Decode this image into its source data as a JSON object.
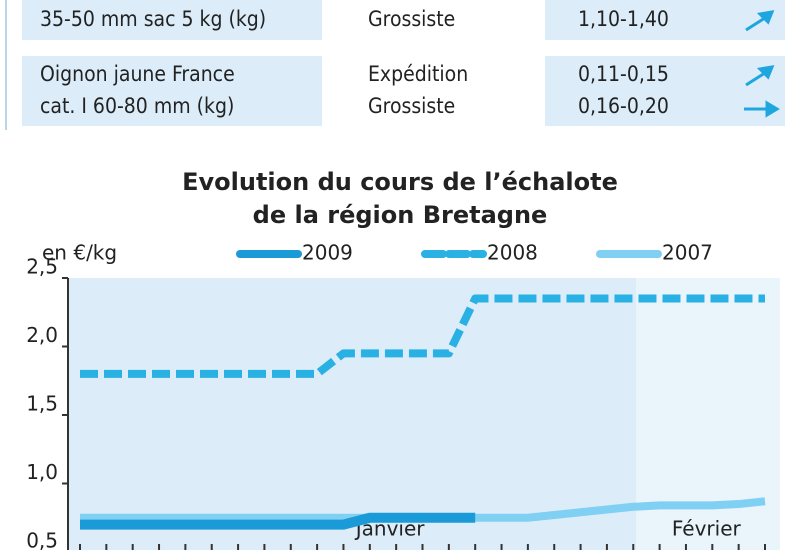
{
  "table": {
    "rows": [
      {
        "label": [
          "35-50 mm sac 5 kg (kg)"
        ],
        "stages": [
          "Grossiste"
        ],
        "prices": [
          "1,10-1,40"
        ]
      },
      {
        "label": [
          "Oignon jaune France",
          "cat. I 60-80 mm (kg)"
        ],
        "stages": [
          "Expédition",
          "Grossiste"
        ],
        "prices": [
          "0,11-0,15",
          "0,16-0,20"
        ]
      }
    ]
  },
  "chart_data": {
    "type": "line",
    "title": [
      "Evolution du cours de l’échalote",
      "de la région Bretagne"
    ],
    "ylabel": "en €/kg",
    "categories": [
      null,
      null,
      null,
      null,
      null,
      null,
      null,
      null,
      null,
      null,
      null,
      null,
      "Janvier",
      null,
      null,
      null,
      null,
      null,
      null,
      null,
      null,
      null,
      null,
      null,
      "Février",
      null,
      null
    ],
    "series": [
      {
        "name": "2009",
        "color": "#1a9ad6",
        "dash": false,
        "values": [
          0.7,
          0.7,
          0.7,
          0.7,
          0.7,
          0.7,
          0.7,
          0.7,
          0.7,
          0.7,
          0.7,
          0.75,
          0.75,
          0.75,
          0.75,
          0.75,
          null,
          null,
          null,
          null,
          null,
          null,
          null,
          null,
          null,
          null,
          null
        ]
      },
      {
        "name": "2008",
        "color": "#29b1e3",
        "dash": true,
        "values": [
          1.8,
          1.8,
          1.8,
          1.8,
          1.8,
          1.8,
          1.8,
          1.8,
          1.8,
          1.8,
          1.95,
          1.95,
          1.95,
          1.95,
          1.95,
          2.35,
          2.35,
          2.35,
          2.35,
          2.35,
          2.35,
          2.35,
          2.35,
          2.35,
          2.35,
          2.35,
          2.35
        ]
      },
      {
        "name": "2007",
        "color": "#7fd0f2",
        "dash": false,
        "values": [
          0.75,
          0.75,
          0.75,
          0.75,
          0.75,
          0.75,
          0.75,
          0.75,
          0.75,
          0.75,
          0.75,
          0.75,
          0.75,
          0.75,
          0.75,
          0.75,
          0.75,
          0.75,
          0.77,
          0.79,
          0.81,
          0.83,
          0.84,
          0.84,
          0.84,
          0.85,
          0.87
        ]
      }
    ],
    "ylim": [
      0.5,
      2.5
    ],
    "yticks": [
      {
        "value": 0.5,
        "label": "0,5"
      },
      {
        "value": 1.0,
        "label": "1,0"
      },
      {
        "value": 1.5,
        "label": "1,5"
      },
      {
        "value": 2.0,
        "label": "2,0"
      },
      {
        "value": 2.5,
        "label": "2,5"
      }
    ],
    "legend": "top"
  }
}
